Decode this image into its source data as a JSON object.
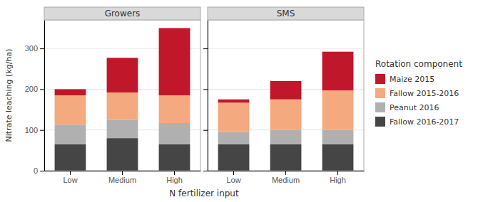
{
  "chart_data": [
    {
      "type": "bar",
      "title": "Growers",
      "stacked": true,
      "grid": true,
      "legend": "right",
      "ylabel": "Nitrate leaching (kg/ha)",
      "xlabel": "N fertilizer input",
      "legend_title": "Rotation component",
      "categories": [
        "Low",
        "Medium",
        "High"
      ],
      "series": [
        {
          "name": "Fallow 2016-2017",
          "color": "#454545",
          "values": [
            65,
            80,
            65
          ]
        },
        {
          "name": "Peanut 2016",
          "color": "#b0b0b0",
          "values": [
            48,
            45,
            52
          ]
        },
        {
          "name": "Fallow 2015-2016",
          "color": "#f4a97f",
          "values": [
            72,
            67,
            68
          ]
        },
        {
          "name": "Maize 2015",
          "color": "#c0182a",
          "values": [
            15,
            85,
            165
          ]
        }
      ],
      "ylim": [
        0,
        370
      ],
      "yticks": [
        0,
        100,
        200,
        300
      ]
    },
    {
      "type": "bar",
      "title": "SMS",
      "stacked": true,
      "grid": true,
      "tick_labels": "x",
      "categories": [
        "Low",
        "Medium",
        "High"
      ],
      "series": [
        {
          "name": "Fallow 2016-2017",
          "color": "#454545",
          "values": [
            65,
            65,
            65
          ]
        },
        {
          "name": "Peanut 2016",
          "color": "#b0b0b0",
          "values": [
            30,
            35,
            35
          ]
        },
        {
          "name": "Fallow 2015-2016",
          "color": "#f4a97f",
          "values": [
            72,
            75,
            97
          ]
        },
        {
          "name": "Maize 2015",
          "color": "#c0182a",
          "values": [
            8,
            45,
            95
          ]
        }
      ],
      "ylim": [
        0,
        370
      ],
      "yticks": [
        0,
        100,
        200,
        300
      ]
    }
  ]
}
